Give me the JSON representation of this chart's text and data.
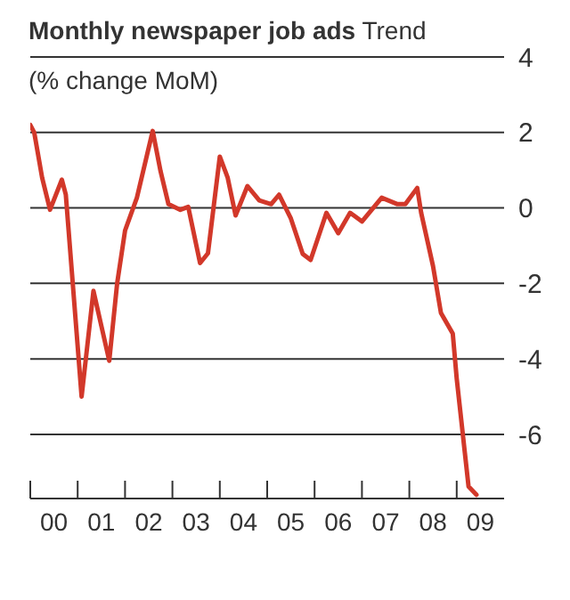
{
  "chart_data": {
    "type": "line",
    "title": "Monthly newspaper job ads",
    "subtitle": "Trend",
    "ylabel": "(% change MoM)",
    "x": [
      "2000-01",
      "2000-02",
      "2000-04",
      "2000-06",
      "2000-09",
      "2000-10",
      "2001-02",
      "2001-05",
      "2001-09",
      "2001-11",
      "2002-01",
      "2002-04",
      "2002-08",
      "2002-10",
      "2002-12",
      "2003-03",
      "2003-05",
      "2003-08",
      "2003-10",
      "2004-01",
      "2004-03",
      "2004-05",
      "2004-08",
      "2004-11",
      "2005-02",
      "2005-04",
      "2005-07",
      "2005-10",
      "2005-12",
      "2006-04",
      "2006-07",
      "2006-10",
      "2007-01",
      "2007-06",
      "2007-10",
      "2007-12",
      "2008-03",
      "2008-04",
      "2008-07",
      "2008-09",
      "2008-12",
      "2009-01",
      "2009-03",
      "2009-04",
      "2009-06"
    ],
    "series": [
      {
        "color": "#d2382a",
        "values": [
          2.2,
          2.0,
          0.8,
          -0.05,
          0.75,
          0.35,
          -5.0,
          -2.2,
          -4.05,
          -2.0,
          -0.6,
          0.27,
          2.04,
          0.97,
          0.1,
          -0.05,
          0.03,
          -1.46,
          -1.2,
          1.36,
          0.8,
          -0.2,
          0.58,
          0.2,
          0.1,
          0.35,
          -0.28,
          -1.22,
          -1.38,
          -0.13,
          -0.67,
          -0.13,
          -0.36,
          0.27,
          0.1,
          0.1,
          0.53,
          -0.13,
          -1.54,
          -2.78,
          -3.33,
          -4.52,
          -6.43,
          -7.38,
          -7.6
        ]
      }
    ],
    "xlim": [
      "2000-01",
      "2010-01"
    ],
    "xticks": [
      {
        "value": "2000-01",
        "label": null
      },
      {
        "value": "2000-07",
        "label": "00"
      },
      {
        "value": "2001-01",
        "label": null
      },
      {
        "value": "2001-07",
        "label": "01"
      },
      {
        "value": "2002-01",
        "label": null
      },
      {
        "value": "2002-07",
        "label": "02"
      },
      {
        "value": "2003-01",
        "label": null
      },
      {
        "value": "2003-07",
        "label": "03"
      },
      {
        "value": "2004-01",
        "label": null
      },
      {
        "value": "2004-07",
        "label": "04"
      },
      {
        "value": "2005-01",
        "label": null
      },
      {
        "value": "2005-07",
        "label": "05"
      },
      {
        "value": "2006-01",
        "label": null
      },
      {
        "value": "2006-07",
        "label": "06"
      },
      {
        "value": "2007-01",
        "label": null
      },
      {
        "value": "2007-07",
        "label": "07"
      },
      {
        "value": "2008-01",
        "label": null
      },
      {
        "value": "2008-07",
        "label": "08"
      },
      {
        "value": "2009-01",
        "label": null
      },
      {
        "value": "2009-07",
        "label": "09"
      }
    ],
    "ylim": [
      -7.7,
      4
    ],
    "yticks": [
      -6,
      -4,
      -2,
      0,
      2,
      4
    ],
    "grid": "y",
    "marker": "none",
    "line_style": "solid"
  }
}
